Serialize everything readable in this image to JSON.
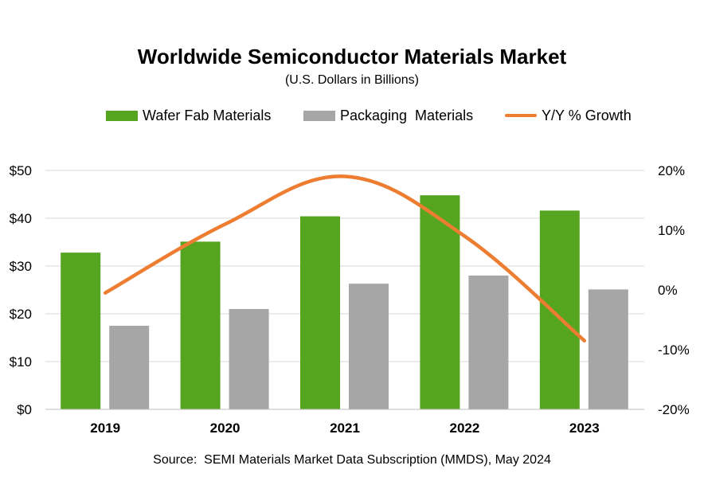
{
  "chart_data": {
    "type": "bar",
    "title": "Worldwide Semiconductor Materials Market",
    "subtitle": "(U.S. Dollars in Billions)",
    "categories": [
      "2019",
      "2020",
      "2021",
      "2022",
      "2023"
    ],
    "series": [
      {
        "name": "Wafer Fab Materials",
        "type": "bar",
        "axis": "left",
        "color": "#55a520",
        "values": [
          32.8,
          35.1,
          40.4,
          44.8,
          41.6
        ]
      },
      {
        "name": "Packaging  Materials",
        "type": "bar",
        "axis": "left",
        "color": "#a6a6a6",
        "values": [
          17.5,
          21.0,
          26.3,
          28.0,
          25.1
        ]
      },
      {
        "name": "Y/Y % Growth",
        "type": "line",
        "axis": "right",
        "color": "#ed7d31",
        "values": [
          -0.5,
          11.0,
          19.0,
          9.0,
          -8.5
        ]
      }
    ],
    "y_left": {
      "ylim": [
        0,
        50
      ],
      "ticks": [
        0,
        10,
        20,
        30,
        40,
        50
      ],
      "tick_labels": [
        "$0",
        "$10",
        "$20",
        "$30",
        "$40",
        "$50"
      ]
    },
    "y_right": {
      "ylim": [
        -20,
        20
      ],
      "ticks": [
        -20,
        -10,
        0,
        10,
        20
      ],
      "tick_labels": [
        "-20%",
        "-10%",
        "0%",
        "10%",
        "20%"
      ]
    },
    "grid": true,
    "legend": "top-center",
    "xlabel": "",
    "ylabel": ""
  },
  "source": "Source:  SEMI Materials Market Data Subscription (MMDS), May 2024"
}
